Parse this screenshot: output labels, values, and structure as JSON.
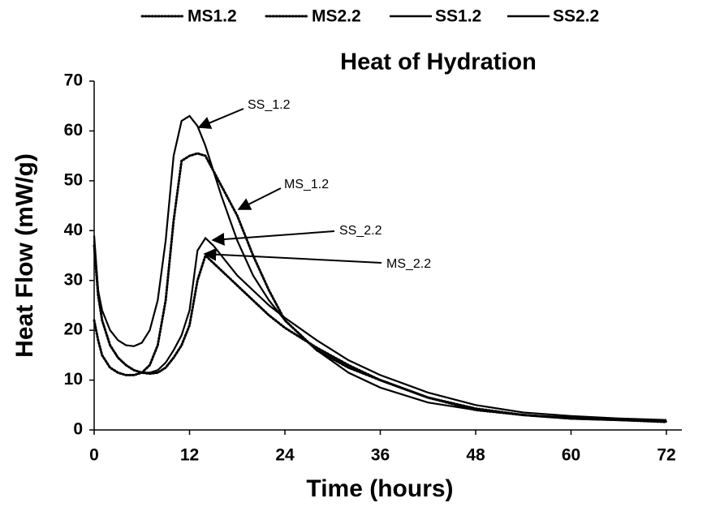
{
  "chart_data": {
    "type": "line",
    "title": "Heat of Hydration",
    "x_label": "Time (hours)",
    "y_label": "Heat Flow (mW/g)",
    "x": [
      0,
      0.5,
      1,
      2,
      3,
      4,
      5,
      6,
      7,
      8,
      9,
      10,
      11,
      12,
      13,
      14,
      15,
      16,
      18,
      20,
      22,
      24,
      28,
      32,
      36,
      42,
      48,
      54,
      60,
      66,
      72
    ],
    "series": [
      {
        "name": "MS1.2",
        "color": "#000000",
        "line_style": "dotted",
        "values": [
          22,
          18,
          15,
          12.5,
          11.5,
          11,
          11,
          11.5,
          13,
          17,
          26,
          42,
          54,
          55,
          55.5,
          55,
          52,
          49,
          43,
          35,
          28,
          22,
          16,
          12.5,
          10,
          6.5,
          4,
          3,
          2.3,
          2,
          1.7
        ]
      },
      {
        "name": "MS2.2",
        "color": "#000000",
        "line_style": "dotted",
        "values": [
          37,
          27,
          22,
          17,
          14.5,
          13,
          12,
          11.5,
          11.3,
          11.5,
          12.5,
          14.5,
          17,
          21,
          30,
          35,
          33.5,
          32,
          29,
          26,
          23,
          20.5,
          16.5,
          13,
          10,
          6.5,
          4.3,
          3,
          2.3,
          2,
          1.6
        ]
      },
      {
        "name": "SS1.2",
        "color": "#000000",
        "line_style": "solid",
        "values": [
          38,
          28,
          24,
          20,
          18,
          17,
          16.8,
          17.5,
          20,
          26,
          38,
          55,
          62,
          63,
          61,
          57,
          52,
          47,
          38,
          31,
          26,
          22,
          16,
          11.5,
          8.5,
          5.5,
          4,
          3,
          2.5,
          2,
          1.7
        ]
      },
      {
        "name": "SS2.2",
        "color": "#000000",
        "line_style": "solid",
        "values": [
          39,
          28,
          22,
          17,
          14.5,
          13,
          12,
          11.5,
          11.5,
          12,
          13.5,
          16,
          19,
          24,
          36,
          38.5,
          37,
          35,
          31,
          28,
          25,
          22.5,
          18,
          14,
          11,
          7.5,
          5,
          3.5,
          2.8,
          2.3,
          2
        ]
      }
    ],
    "annotations": [
      "SS_1.2",
      "MS_1.2",
      "SS_2.2",
      "MS_2.2"
    ],
    "xlim": [
      0,
      72
    ],
    "xticks": [
      0,
      12,
      24,
      36,
      48,
      60,
      72
    ],
    "ylim": [
      0,
      70
    ],
    "yticks": [
      0,
      10,
      20,
      30,
      40,
      50,
      60,
      70
    ],
    "grid": false,
    "legend": "top"
  }
}
